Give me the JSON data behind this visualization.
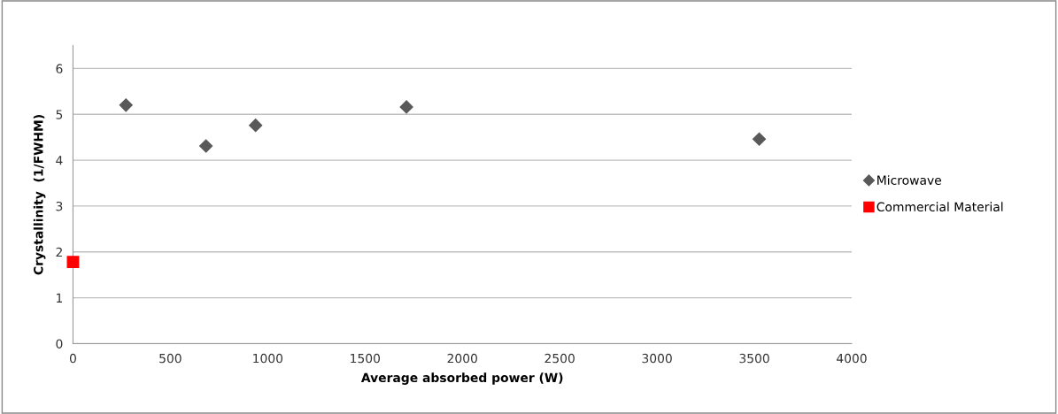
{
  "chart_data": {
    "type": "scatter",
    "xlabel": "Average absorbed power (W)",
    "ylabel": "Crystallinity  (1/FWHM)",
    "xlim": [
      0,
      4000
    ],
    "xticks": [
      0,
      500,
      1000,
      1500,
      2000,
      2500,
      3000,
      3500,
      4000
    ],
    "ylim": [
      0,
      6.5
    ],
    "yticks": [
      0,
      1,
      2,
      3,
      4,
      5,
      6
    ],
    "grid": "y",
    "legend": "right",
    "series": [
      {
        "name": "Microwave",
        "color": "#595959",
        "marker": "diamond",
        "x": [
          272,
          683,
          938,
          1713,
          3525
        ],
        "values": [
          5.2,
          4.31,
          4.76,
          5.16,
          4.46
        ]
      },
      {
        "name": "Commercial Material",
        "color": "#ff0000",
        "marker": "square",
        "x": [
          0
        ],
        "values": [
          1.78
        ]
      }
    ]
  }
}
